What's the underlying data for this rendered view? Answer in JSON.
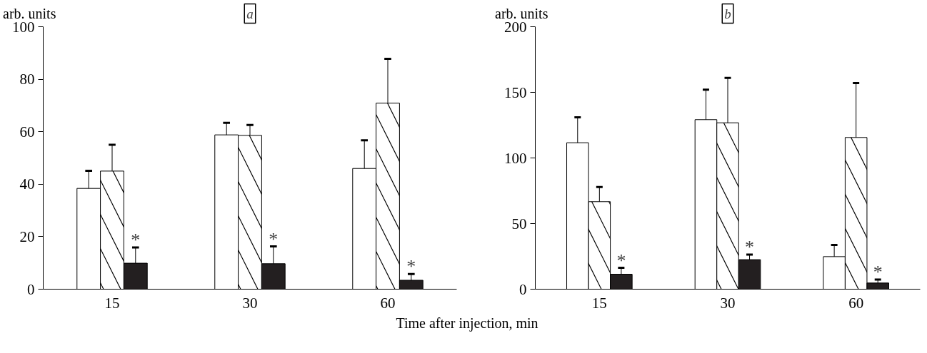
{
  "chart_data": [
    {
      "type": "bar",
      "title": "a",
      "ylabel": "arb. units",
      "xlabel": "Time after injection, min",
      "categories": [
        "15",
        "30",
        "60"
      ],
      "ylim": [
        0,
        100
      ],
      "yticks": [
        0,
        20,
        40,
        60,
        80,
        100
      ],
      "grid": false,
      "series": [
        {
          "color": "#ffffff",
          "values": [
            38.4,
            58.8,
            46.0
          ],
          "errors": [
            6.7,
            4.6,
            10.7
          ]
        },
        {
          "color": "#ffffff",
          "values": [
            45.0,
            58.6,
            70.9
          ],
          "errors": [
            10.0,
            4.0,
            16.9
          ]
        },
        {
          "color": "#231f20",
          "values": [
            9.9,
            9.7,
            3.4
          ],
          "errors": [
            6.0,
            6.6,
            2.4
          ]
        }
      ],
      "annotations": [
        "*",
        "*",
        "*"
      ]
    },
    {
      "type": "bar",
      "title": "b",
      "ylabel": "arb. units",
      "categories": [
        "15",
        "30",
        "60"
      ],
      "ylim": [
        0,
        200
      ],
      "yticks": [
        0,
        50,
        100,
        150,
        200
      ],
      "grid": false,
      "series": [
        {
          "color": "#ffffff",
          "values": [
            111.6,
            129.2,
            24.8
          ],
          "errors": [
            19.4,
            22.8,
            8.9
          ]
        },
        {
          "color": "#ffffff",
          "values": [
            66.7,
            126.8,
            115.6
          ],
          "errors": [
            11.2,
            34.2,
            41.5
          ]
        },
        {
          "color": "#231f20",
          "values": [
            11.4,
            22.5,
            4.7
          ],
          "errors": [
            4.9,
            3.8,
            2.7
          ]
        }
      ],
      "annotations": [
        "*",
        "*",
        "*"
      ]
    }
  ]
}
